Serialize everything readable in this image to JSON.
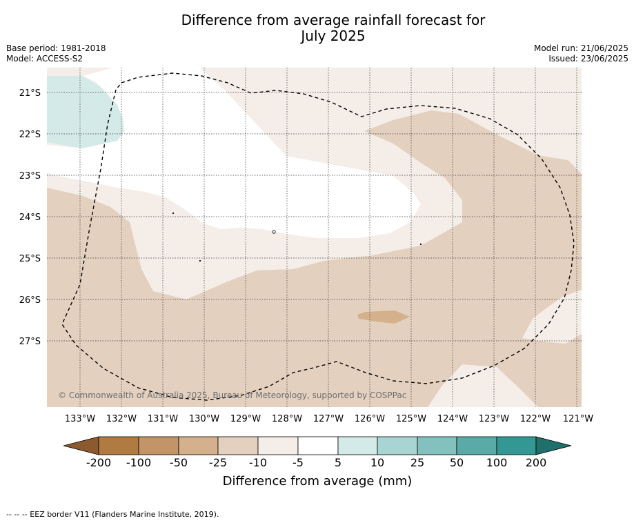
{
  "title_line1": "Difference from average rainfall forecast for",
  "title_line2": "July 2025",
  "base_period": "Base period: 1981-2018",
  "model": "Model: ACCESS-S2",
  "model_run": "Model run: 21/06/2025",
  "issued": "Issued: 23/06/2025",
  "copyright": "© Commonwealth of Australia 2025, Bureau of Meteorology, supported by COSPPac",
  "footnote": "--  --  -- EEZ border V11 (Flanders Marine Institute, 2019).",
  "map": {
    "lon_ticks": [
      "133°W",
      "132°W",
      "131°W",
      "130°W",
      "129°W",
      "128°W",
      "127°W",
      "126°W",
      "125°W",
      "124°W",
      "123°W",
      "122°W",
      "121°W"
    ],
    "lat_ticks": [
      "21°S",
      "22°S",
      "23°S",
      "24°S",
      "25°S",
      "26°S",
      "27°S"
    ]
  },
  "colorbar": {
    "title": "Difference from average (mm)",
    "labels": [
      "-200",
      "-100",
      "-50",
      "-25",
      "-10",
      "-5",
      "5",
      "10",
      "25",
      "50",
      "100",
      "200"
    ],
    "colors": [
      "#8c5a2e",
      "#b07a43",
      "#c29467",
      "#d4b08c",
      "#e3d0bf",
      "#f4ede8",
      "#ffffff",
      "#d4eae9",
      "#a8d4d3",
      "#84c1be",
      "#5aaba8",
      "#339893",
      "#1f6f6b"
    ]
  },
  "fill_colors": {
    "near_dry": "#f4ede8",
    "dry": "#e3d0bf",
    "drier": "#d4b08c",
    "wet": "#d4eae9"
  }
}
